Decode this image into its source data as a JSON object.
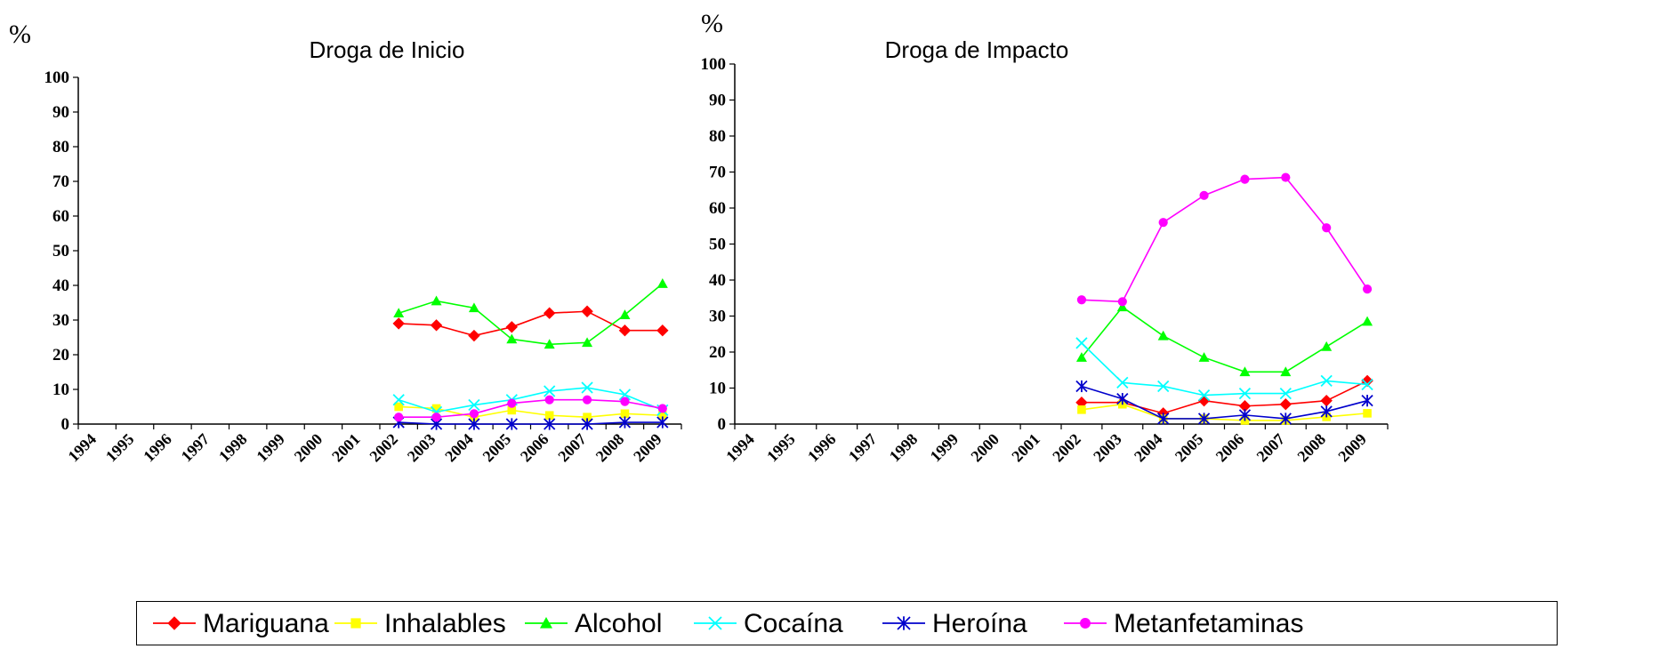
{
  "chart_data": [
    {
      "type": "line",
      "title": "Droga de Inicio",
      "ylabel": "%",
      "xlabel": "",
      "ylim": [
        0,
        100
      ],
      "yticks": [
        0,
        10,
        20,
        30,
        40,
        50,
        60,
        70,
        80,
        90,
        100
      ],
      "categories": [
        "1994",
        "1995",
        "1996",
        "1997",
        "1998",
        "1999",
        "2000",
        "2001",
        "2002",
        "2003",
        "2004",
        "2005",
        "2006",
        "2007",
        "2008",
        "2009"
      ],
      "grid": false,
      "legend": "bottom",
      "series": [
        {
          "name": "Mariguana",
          "color": "#ff0000",
          "marker": "diamond",
          "x": [
            "2002",
            "2003",
            "2004",
            "2005",
            "2006",
            "2007",
            "2008",
            "2009"
          ],
          "values": [
            29,
            28.5,
            25.5,
            28,
            32,
            32.5,
            27,
            27
          ]
        },
        {
          "name": "Inhalables",
          "color": "#ffff00",
          "marker": "square",
          "x": [
            "2002",
            "2003",
            "2004",
            "2005",
            "2006",
            "2007",
            "2008",
            "2009"
          ],
          "values": [
            5,
            4.5,
            2,
            4,
            2.5,
            2,
            3,
            2.5
          ]
        },
        {
          "name": "Alcohol",
          "color": "#00ff00",
          "marker": "triangle",
          "x": [
            "2002",
            "2003",
            "2004",
            "2005",
            "2006",
            "2007",
            "2008",
            "2009"
          ],
          "values": [
            32,
            35.5,
            33.5,
            24.5,
            23,
            23.5,
            31.5,
            40.5
          ]
        },
        {
          "name": "Cocaína",
          "color": "#00ffff",
          "marker": "x",
          "x": [
            "2002",
            "2003",
            "2004",
            "2005",
            "2006",
            "2007",
            "2008",
            "2009"
          ],
          "values": [
            7,
            3.5,
            5.5,
            7,
            9.5,
            10.5,
            8.5,
            4
          ]
        },
        {
          "name": "Heroína",
          "color": "#0000cc",
          "marker": "star",
          "x": [
            "2002",
            "2003",
            "2004",
            "2005",
            "2006",
            "2007",
            "2008",
            "2009"
          ],
          "values": [
            0.5,
            0,
            0,
            0,
            0,
            0,
            0.5,
            0.5
          ]
        },
        {
          "name": "Metanfetaminas",
          "color": "#ff00ff",
          "marker": "circle",
          "x": [
            "2002",
            "2003",
            "2004",
            "2005",
            "2006",
            "2007",
            "2008",
            "2009"
          ],
          "values": [
            2,
            2,
            3,
            6,
            7,
            7,
            6.5,
            4.5
          ]
        }
      ]
    },
    {
      "type": "line",
      "title": "Droga de Impacto",
      "ylabel": "%",
      "xlabel": "",
      "ylim": [
        0,
        100
      ],
      "yticks": [
        0,
        10,
        20,
        30,
        40,
        50,
        60,
        70,
        80,
        90,
        100
      ],
      "categories": [
        "1994",
        "1995",
        "1996",
        "1997",
        "1998",
        "1999",
        "2000",
        "2001",
        "2002",
        "2003",
        "2004",
        "2005",
        "2006",
        "2007",
        "2008",
        "2009"
      ],
      "grid": false,
      "legend": "bottom",
      "series": [
        {
          "name": "Mariguana",
          "color": "#ff0000",
          "marker": "diamond",
          "x": [
            "2002",
            "2003",
            "2004",
            "2005",
            "2006",
            "2007",
            "2008",
            "2009"
          ],
          "values": [
            6,
            6,
            3,
            6.5,
            5,
            5.5,
            6.5,
            12
          ]
        },
        {
          "name": "Inhalables",
          "color": "#ffff00",
          "marker": "square",
          "x": [
            "2002",
            "2003",
            "2004",
            "2005",
            "2006",
            "2007",
            "2008",
            "2009"
          ],
          "values": [
            4,
            5.5,
            1.5,
            1.5,
            1,
            1,
            2,
            3
          ]
        },
        {
          "name": "Alcohol",
          "color": "#00ff00",
          "marker": "triangle",
          "x": [
            "2002",
            "2003",
            "2004",
            "2005",
            "2006",
            "2007",
            "2008",
            "2009"
          ],
          "values": [
            18.5,
            32.5,
            24.5,
            18.5,
            14.5,
            14.5,
            21.5,
            28.5
          ]
        },
        {
          "name": "Cocaína",
          "color": "#00ffff",
          "marker": "x",
          "x": [
            "2002",
            "2003",
            "2004",
            "2005",
            "2006",
            "2007",
            "2008",
            "2009"
          ],
          "values": [
            22.5,
            11.5,
            10.5,
            8,
            8.5,
            8.5,
            12,
            11
          ]
        },
        {
          "name": "Heroína",
          "color": "#0000cc",
          "marker": "star",
          "x": [
            "2002",
            "2003",
            "2004",
            "2005",
            "2006",
            "2007",
            "2008",
            "2009"
          ],
          "values": [
            10.5,
            7,
            1.5,
            1.5,
            2.5,
            1.5,
            3.5,
            6.5
          ]
        },
        {
          "name": "Metanfetaminas",
          "color": "#ff00ff",
          "marker": "circle",
          "x": [
            "2002",
            "2003",
            "2004",
            "2005",
            "2006",
            "2007",
            "2008",
            "2009"
          ],
          "values": [
            34.5,
            34,
            56,
            63.5,
            68,
            68.5,
            54.5,
            37.5
          ]
        }
      ]
    }
  ],
  "legend": {
    "items": [
      {
        "label": "Mariguana",
        "color": "#ff0000",
        "marker": "diamond"
      },
      {
        "label": "Inhalables",
        "color": "#ffff00",
        "marker": "square"
      },
      {
        "label": "Alcohol",
        "color": "#00ff00",
        "marker": "triangle"
      },
      {
        "label": "Cocaína",
        "color": "#00ffff",
        "marker": "x"
      },
      {
        "label": "Heroína",
        "color": "#0000cc",
        "marker": "star"
      },
      {
        "label": "Metanfetaminas",
        "color": "#ff00ff",
        "marker": "circle"
      }
    ]
  }
}
